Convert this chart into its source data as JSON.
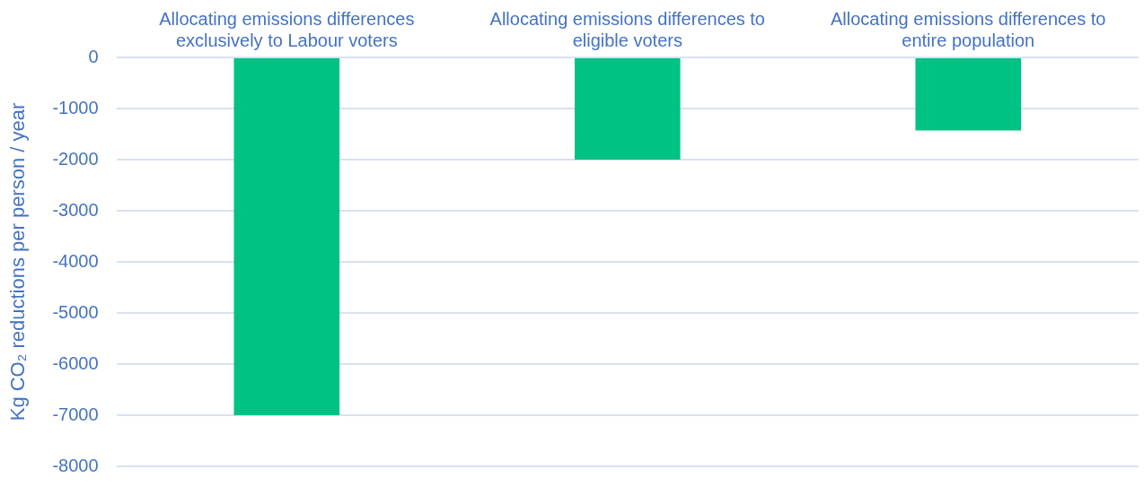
{
  "chart_data": {
    "type": "bar",
    "categories": [
      "Allocating emissions differences exclusively to Labour voters",
      "Allocating emissions differences to eligible voters",
      "Allocating emissions differences to entire population"
    ],
    "values": [
      -7000,
      -2000,
      -1430
    ],
    "color": "#00c283",
    "ylabel": "Kg CO₂ reductions per person / year",
    "ylim": [
      -8000,
      0
    ],
    "yticks": [
      0,
      -1000,
      -2000,
      -3000,
      -4000,
      -5000,
      -6000,
      -7000,
      -8000
    ],
    "grid": "y",
    "legend": false
  }
}
